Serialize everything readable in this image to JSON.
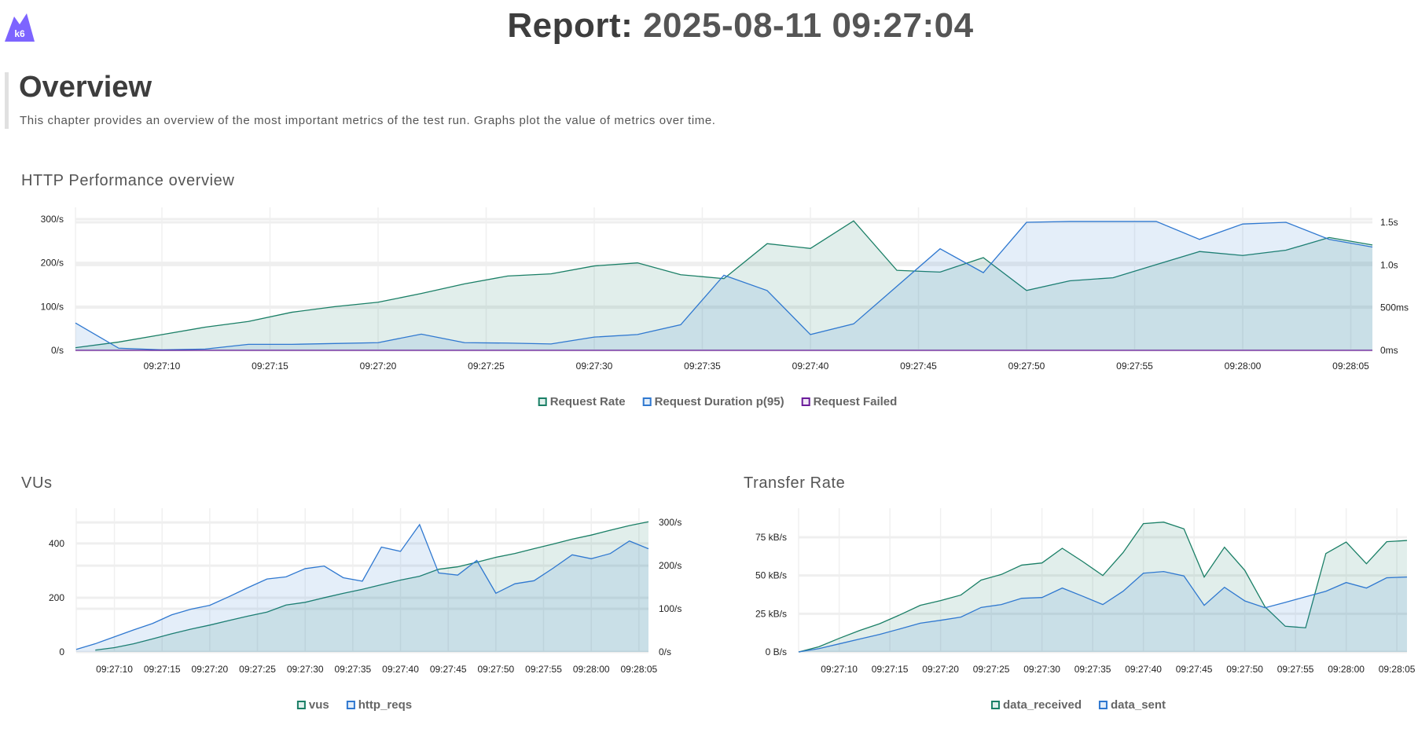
{
  "header": {
    "logo_text": "k6",
    "title_prefix": "Report:",
    "title_date": "2025-08-11 09:27:04"
  },
  "chapter": {
    "title": "Overview",
    "description": "This chapter provides an overview of the most important metrics of the test run. Graphs plot the value of metrics over time."
  },
  "colors": {
    "green": "#1a7f66",
    "blue": "#2f78d0",
    "purple": "#6a1b9a",
    "logo": "#7d64ff"
  },
  "chart_data": [
    {
      "type": "area",
      "title": "HTTP Performance overview",
      "x": [
        "09:27:06",
        "09:27:08",
        "09:27:10",
        "09:27:12",
        "09:27:14",
        "09:27:16",
        "09:27:18",
        "09:27:20",
        "09:27:22",
        "09:27:24",
        "09:27:26",
        "09:27:28",
        "09:27:30",
        "09:27:32",
        "09:27:34",
        "09:27:36",
        "09:27:38",
        "09:27:40",
        "09:27:42",
        "09:27:44",
        "09:27:46",
        "09:27:48",
        "09:27:50",
        "09:27:52",
        "09:27:54",
        "09:27:56",
        "09:27:58",
        "09:28:00",
        "09:28:02",
        "09:28:04",
        "09:28:06"
      ],
      "xticks": [
        "09:27:10",
        "09:27:15",
        "09:27:20",
        "09:27:25",
        "09:27:30",
        "09:27:35",
        "09:27:40",
        "09:27:45",
        "09:27:50",
        "09:27:55",
        "09:28:00",
        "09:28:05"
      ],
      "y_left": {
        "ylim": [
          0,
          327
        ],
        "ticks": [
          0,
          100,
          200,
          300
        ],
        "tick_labels": [
          "0/s",
          "100/s",
          "200/s",
          "300/s"
        ]
      },
      "y_right": {
        "ylim": [
          0,
          1.675
        ],
        "ticks": [
          0,
          0.5,
          1.0,
          1.5
        ],
        "tick_labels": [
          "0ms",
          "500ms",
          "1.0s",
          "1.5s"
        ]
      },
      "grid": true,
      "legend": "bottom-center",
      "series": [
        {
          "name": "Request Rate",
          "axis": "left",
          "color": "#1a7f66",
          "values": [
            6,
            19,
            36,
            53,
            66,
            87,
            100,
            110,
            130,
            152,
            170,
            175,
            193,
            200,
            173,
            164,
            244,
            233,
            296,
            183,
            179,
            212,
            137,
            159,
            166,
            196,
            226,
            217,
            229,
            258,
            241
          ]
        },
        {
          "name": "Request Duration p(95)",
          "axis": "right",
          "color": "#2f78d0",
          "values": [
            0.32,
            0.025,
            0.006,
            0.015,
            0.07,
            0.07,
            0.08,
            0.09,
            0.19,
            0.09,
            0.085,
            0.075,
            0.155,
            0.185,
            0.3,
            0.88,
            0.7,
            0.185,
            0.31,
            0.75,
            1.19,
            0.91,
            1.5,
            1.51,
            1.51,
            1.51,
            1.3,
            1.48,
            1.5,
            1.3,
            1.21
          ]
        },
        {
          "name": "Request Failed",
          "axis": "left",
          "color": "#6a1b9a",
          "values": [
            0,
            0,
            0,
            0,
            0,
            0,
            0,
            0,
            0,
            0,
            0,
            0,
            0,
            0,
            0,
            0,
            0,
            0,
            0,
            0,
            0,
            0,
            0,
            0,
            0,
            0,
            0,
            0,
            0,
            0,
            0
          ]
        }
      ]
    },
    {
      "type": "area",
      "title": "VUs",
      "x": [
        "09:27:06",
        "09:27:08",
        "09:27:10",
        "09:27:12",
        "09:27:14",
        "09:27:16",
        "09:27:18",
        "09:27:20",
        "09:27:22",
        "09:27:24",
        "09:27:26",
        "09:27:28",
        "09:27:30",
        "09:27:32",
        "09:27:34",
        "09:27:36",
        "09:27:38",
        "09:27:40",
        "09:27:42",
        "09:27:44",
        "09:27:46",
        "09:27:48",
        "09:27:50",
        "09:27:52",
        "09:27:54",
        "09:27:56",
        "09:27:58",
        "09:28:00",
        "09:28:02",
        "09:28:04",
        "09:28:06"
      ],
      "xticks": [
        "09:27:10",
        "09:27:15",
        "09:27:20",
        "09:27:25",
        "09:27:30",
        "09:27:35",
        "09:27:40",
        "09:27:45",
        "09:27:50",
        "09:27:55",
        "09:28:00",
        "09:28:05"
      ],
      "y_left": {
        "ylim": [
          0,
          530
        ],
        "ticks": [
          0,
          200,
          400
        ],
        "tick_labels": [
          "0",
          "200",
          "400"
        ]
      },
      "y_right": {
        "ylim": [
          0,
          333
        ],
        "ticks": [
          0,
          100,
          200,
          300
        ],
        "tick_labels": [
          "0/s",
          "100/s",
          "200/s",
          "300/s"
        ]
      },
      "grid": true,
      "legend": "bottom-center",
      "series": [
        {
          "name": "vus",
          "axis": "left",
          "color": "#1a7f66",
          "values": [
            null,
            7,
            16,
            30,
            48,
            67,
            84,
            99,
            116,
            132,
            147,
            173,
            183,
            200,
            216,
            231,
            248,
            265,
            279,
            305,
            314,
            331,
            349,
            363,
            381,
            398,
            416,
            431,
            449,
            466,
            480
          ]
        },
        {
          "name": "http_reqs",
          "axis": "right",
          "color": "#2f78d0",
          "values": [
            6,
            19,
            35,
            51,
            66,
            86,
            99,
            108,
            128,
            149,
            169,
            174,
            193,
            199,
            172,
            164,
            243,
            233,
            295,
            183,
            178,
            212,
            136,
            158,
            165,
            194,
            225,
            216,
            228,
            257,
            239
          ]
        }
      ]
    },
    {
      "type": "area",
      "title": "Transfer Rate",
      "x": [
        "09:27:06",
        "09:27:08",
        "09:27:10",
        "09:27:12",
        "09:27:14",
        "09:27:16",
        "09:27:18",
        "09:27:20",
        "09:27:22",
        "09:27:24",
        "09:27:26",
        "09:27:28",
        "09:27:30",
        "09:27:32",
        "09:27:34",
        "09:27:36",
        "09:27:38",
        "09:27:40",
        "09:27:42",
        "09:27:44",
        "09:27:46",
        "09:27:48",
        "09:27:50",
        "09:27:52",
        "09:27:54",
        "09:27:56",
        "09:27:58",
        "09:28:00",
        "09:28:02",
        "09:28:04",
        "09:28:06"
      ],
      "xticks": [
        "09:27:10",
        "09:27:15",
        "09:27:20",
        "09:27:25",
        "09:27:30",
        "09:27:35",
        "09:27:40",
        "09:27:45",
        "09:27:50",
        "09:27:55",
        "09:28:00",
        "09:28:05"
      ],
      "y_left": {
        "ylim": [
          0,
          94
        ],
        "ticks": [
          0,
          25,
          50,
          75
        ],
        "tick_labels": [
          "0 B/s",
          "25 kB/s",
          "50 kB/s",
          "75 kB/s"
        ]
      },
      "grid": true,
      "legend": "bottom-center",
      "series": [
        {
          "name": "data_received",
          "axis": "left",
          "color": "#1a7f66",
          "values": [
            0,
            3.4,
            8.9,
            14,
            18.5,
            24.3,
            30.5,
            33.6,
            37.2,
            47,
            50.7,
            56.8,
            58.2,
            67.8,
            59.2,
            50,
            65,
            83.9,
            84.9,
            80.5,
            49,
            68.5,
            53.4,
            29.5,
            16.8,
            15.8,
            64.4,
            71.9,
            57.7,
            72.1,
            72.9
          ]
        },
        {
          "name": "data_sent",
          "axis": "left",
          "color": "#2f78d0",
          "values": [
            0,
            2.2,
            5.3,
            8.4,
            11.5,
            15.1,
            18.8,
            20.7,
            22.8,
            29.1,
            31,
            35.1,
            35.6,
            41.8,
            36.5,
            31,
            39.7,
            51.5,
            52.6,
            49.7,
            30.5,
            42.3,
            33.4,
            28.9,
            32.4,
            36.1,
            39.7,
            45.4,
            41.8,
            48.5,
            49
          ]
        }
      ]
    }
  ]
}
